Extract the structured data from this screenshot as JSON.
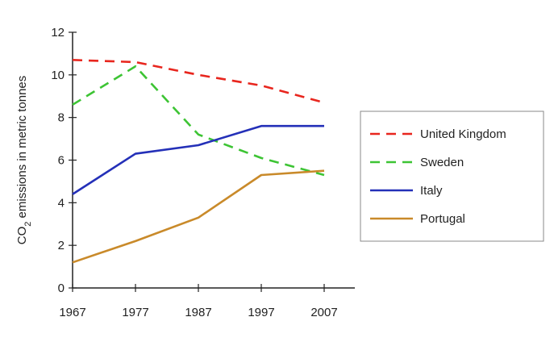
{
  "chart_data": {
    "type": "line",
    "title": "",
    "xlabel": "",
    "ylabel": {
      "prefix": "CO",
      "subscript": "2",
      "suffix": " emissions in metric tonnes"
    },
    "categories": [
      "1967",
      "1977",
      "1987",
      "1997",
      "2007"
    ],
    "ylim": [
      0,
      12
    ],
    "yticks": [
      "0",
      "2",
      "4",
      "6",
      "8",
      "10",
      "12"
    ],
    "grid": false,
    "legend_position": "right",
    "series": [
      {
        "name": "United Kingdom",
        "color": "#e8261e",
        "dash": "dashed",
        "values": [
          10.7,
          10.6,
          10.0,
          9.5,
          8.7
        ]
      },
      {
        "name": "Sweden",
        "color": "#3dc434",
        "dash": "dashed",
        "values": [
          8.6,
          10.4,
          7.2,
          6.1,
          5.3
        ]
      },
      {
        "name": "Italy",
        "color": "#2430b8",
        "dash": "solid",
        "values": [
          4.4,
          6.3,
          6.7,
          7.6,
          7.6
        ]
      },
      {
        "name": "Portugal",
        "color": "#c98a2a",
        "dash": "solid",
        "values": [
          1.2,
          2.2,
          3.3,
          5.3,
          5.5
        ]
      }
    ]
  }
}
